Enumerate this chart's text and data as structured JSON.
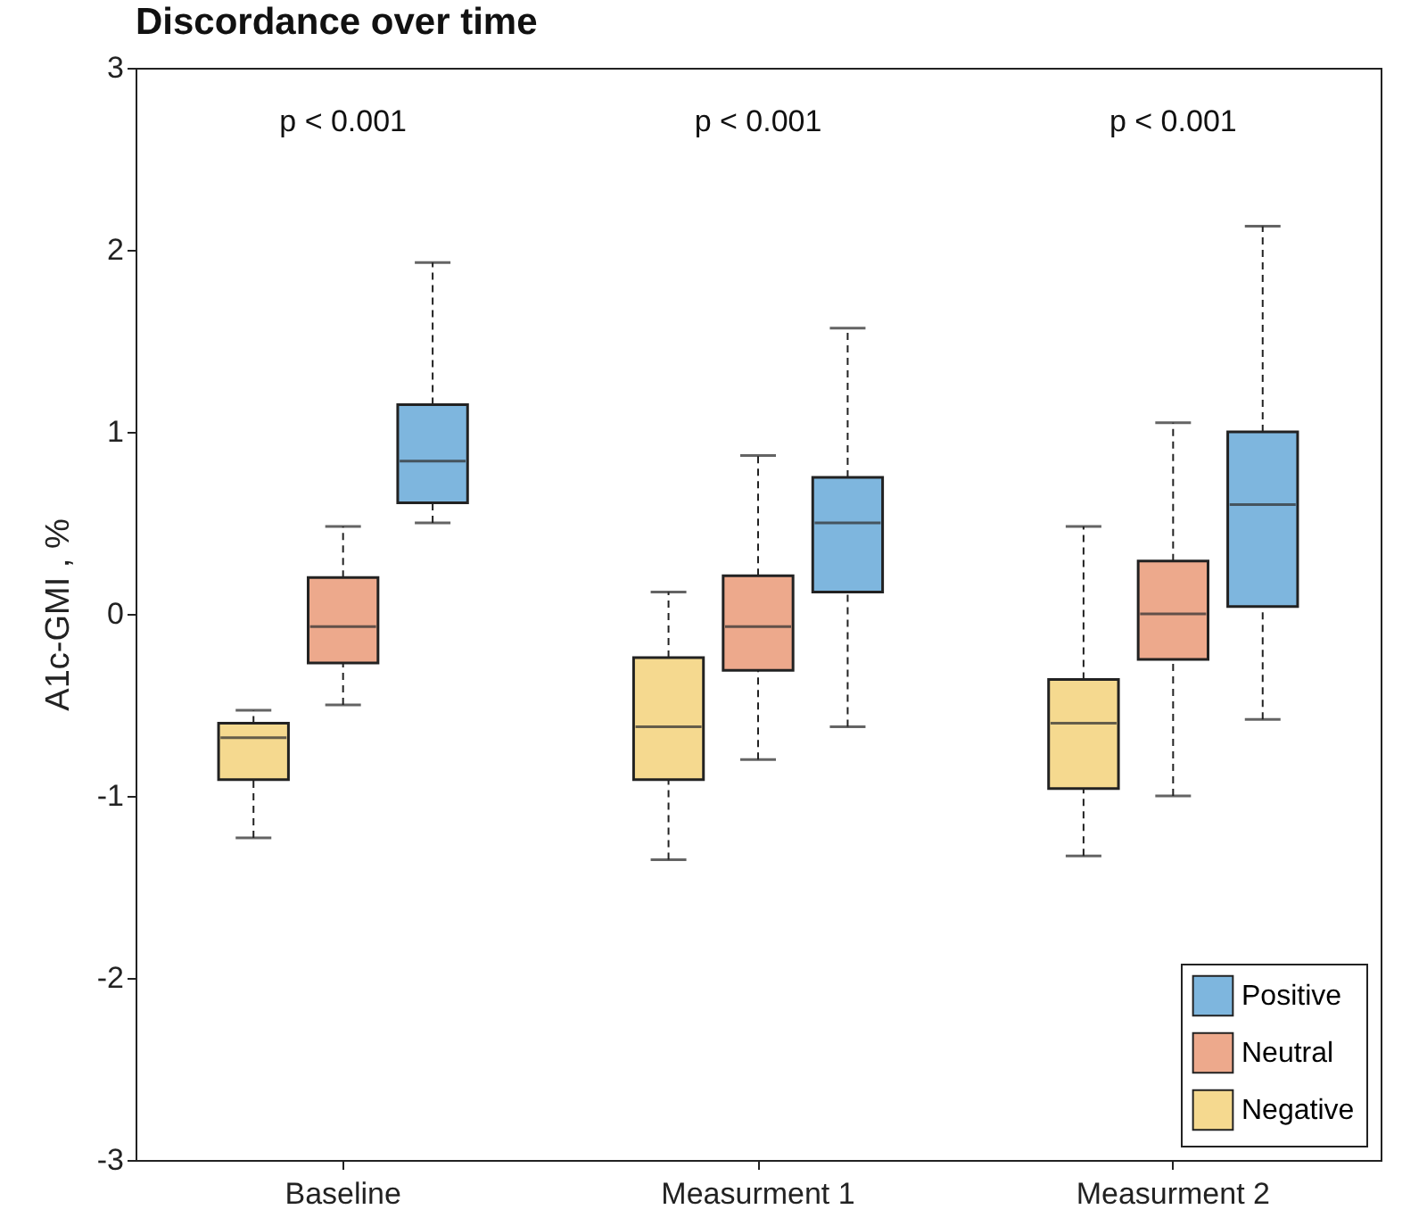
{
  "chart_data": {
    "type": "box",
    "title": "Discordance over time",
    "ylabel": "A1c-GMI , %",
    "categories": [
      "Baseline",
      "Measurment 1",
      "Measurment 2"
    ],
    "series": [
      {
        "name": "Negative",
        "color": "#f5d98f",
        "boxes": [
          {
            "low": -1.23,
            "q1": -0.91,
            "median": -0.68,
            "q3": -0.6,
            "high": -0.53
          },
          {
            "low": -1.35,
            "q1": -0.91,
            "median": -0.62,
            "q3": -0.24,
            "high": 0.12
          },
          {
            "low": -1.33,
            "q1": -0.96,
            "median": -0.6,
            "q3": -0.36,
            "high": 0.48
          }
        ]
      },
      {
        "name": "Neutral",
        "color": "#eda98c",
        "boxes": [
          {
            "low": -0.5,
            "q1": -0.27,
            "median": -0.07,
            "q3": 0.2,
            "high": 0.48
          },
          {
            "low": -0.8,
            "q1": -0.31,
            "median": -0.07,
            "q3": 0.21,
            "high": 0.87
          },
          {
            "low": -1.0,
            "q1": -0.25,
            "median": 0.0,
            "q3": 0.29,
            "high": 1.05
          }
        ]
      },
      {
        "name": "Positive",
        "color": "#7eb6de",
        "boxes": [
          {
            "low": 0.5,
            "q1": 0.61,
            "median": 0.84,
            "q3": 1.15,
            "high": 1.93
          },
          {
            "low": -0.62,
            "q1": 0.12,
            "median": 0.5,
            "q3": 0.75,
            "high": 1.57
          },
          {
            "low": -0.58,
            "q1": 0.04,
            "median": 0.6,
            "q3": 1.0,
            "high": 2.13
          }
        ]
      }
    ],
    "ylim": [
      -3,
      3
    ],
    "yticks": [
      -3,
      -2,
      -1,
      0,
      1,
      2,
      3
    ],
    "legend": "bottom right",
    "annotations": [
      "p < 0.001",
      "p < 0.001",
      "p < 0.001"
    ]
  }
}
